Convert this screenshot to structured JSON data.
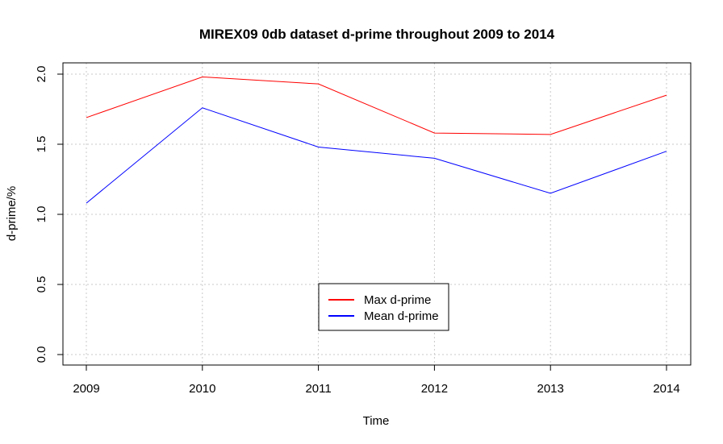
{
  "chart_data": {
    "type": "line",
    "title": "MIREX09 0db dataset d-prime throughout 2009 to 2014",
    "xlabel": "Time",
    "ylabel": "d-prime/%",
    "x": [
      "2009",
      "2010",
      "2011",
      "2012",
      "2013",
      "2014"
    ],
    "y_ticks": [
      "0.0",
      "0.5",
      "1.0",
      "1.5",
      "2.0"
    ],
    "ylim": [
      0,
      2
    ],
    "grid": true,
    "legend_position": "bottom-center",
    "series": [
      {
        "name": "Max d-prime",
        "color": "#ff0000",
        "values": [
          1.69,
          1.98,
          1.93,
          1.58,
          1.57,
          1.85
        ]
      },
      {
        "name": "Mean d-prime",
        "color": "#0000ff",
        "values": [
          1.08,
          1.76,
          1.48,
          1.4,
          1.15,
          1.45
        ]
      }
    ]
  }
}
